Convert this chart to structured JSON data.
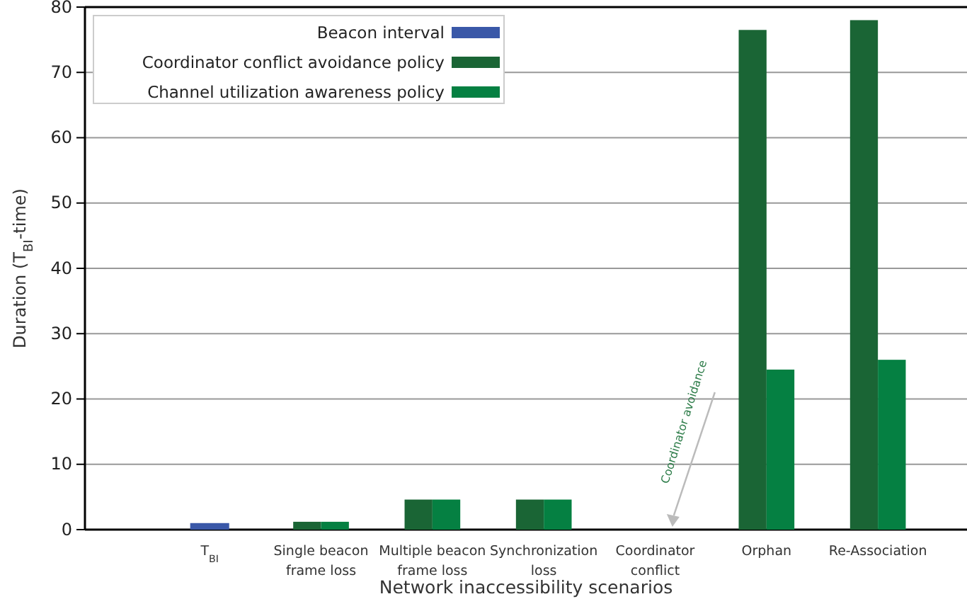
{
  "chart_data": {
    "type": "bar",
    "xlabel": "Network inaccessibility scenarios",
    "ylabel": "Duration (T$_{BI}$-time)",
    "categories": [
      "T$_{BI}$",
      "Single beacon frame loss",
      "Multiple beacon frame loss",
      "Synchronization loss",
      "Coordinator conflict",
      "Orphan",
      "Re-Association"
    ],
    "series": [
      {
        "name": "Beacon interval",
        "color": "#3a58a8",
        "values": [
          1,
          null,
          null,
          null,
          null,
          null,
          null
        ]
      },
      {
        "name": "Coordinator conflict avoidance policy",
        "color": "#1a6535",
        "values": [
          null,
          1.2,
          4.6,
          4.6,
          null,
          76.5,
          78
        ]
      },
      {
        "name": "Channel utilization awareness policy",
        "color": "#058042",
        "values": [
          null,
          1.2,
          4.6,
          4.6,
          null,
          24.5,
          26
        ]
      }
    ],
    "ylim": [
      0,
      80
    ],
    "yticks": [
      0,
      10,
      20,
      30,
      40,
      50,
      60,
      70,
      80
    ],
    "grid": "y",
    "legend": "top left",
    "annotations": [
      "Coordinator avoidance"
    ]
  }
}
